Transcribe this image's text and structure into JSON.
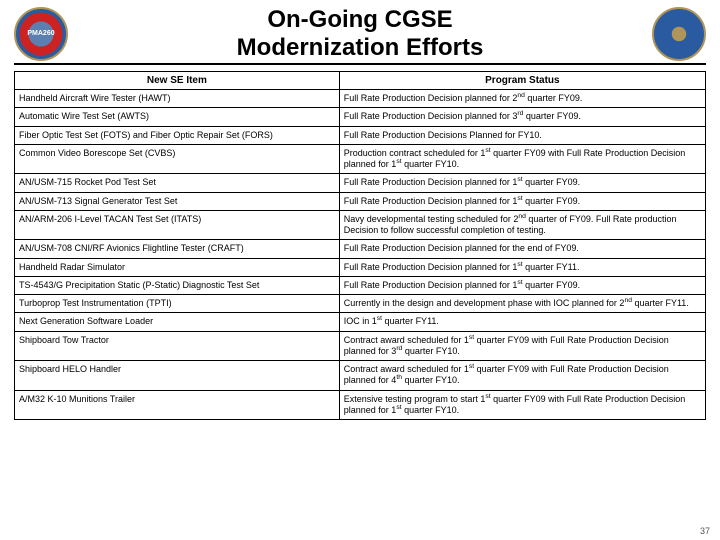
{
  "title_line1": "On-Going CGSE",
  "title_line2": "Modernization Efforts",
  "logo_left_label": "PMA260",
  "logo_right_label": "",
  "page_number": "37",
  "table": {
    "columns": [
      "New SE Item",
      "Program Status"
    ],
    "col_widths": [
      "47%",
      "53%"
    ],
    "header_fontsize": 10,
    "cell_fontsize": 9,
    "border_color": "#000000",
    "background_color": "#ffffff",
    "rows": [
      [
        "Handheld Aircraft Wire Tester (HAWT)",
        "Full Rate Production Decision planned for 2<sup>nd</sup> quarter FY09."
      ],
      [
        "Automatic Wire Test Set (AWTS)",
        "Full Rate Production Decision planned for 3<sup>rd</sup> quarter FY09."
      ],
      [
        "Fiber Optic Test Set (FOTS) and Fiber Optic Repair Set (FORS)",
        "Full Rate Production Decisions Planned for FY10."
      ],
      [
        "Common Video Borescope Set (CVBS)",
        "Production contract scheduled for 1<sup>st</sup> quarter FY09 with Full Rate Production Decision planned for 1<sup>st</sup> quarter FY10."
      ],
      [
        "AN/USM-715 Rocket Pod Test Set",
        "Full Rate Production Decision planned for 1<sup>st</sup> quarter FY09."
      ],
      [
        "AN/USM-713 Signal Generator Test Set",
        "Full Rate Production Decision planned for 1<sup>st</sup> quarter FY09."
      ],
      [
        "AN/ARM-206 I-Level TACAN Test Set  (ITATS)",
        "Navy developmental testing scheduled for 2<sup>nd</sup> quarter of FY09. Full Rate production Decision to follow successful completion of testing."
      ],
      [
        "AN/USM-708 CNI/RF Avionics Flightline Tester (CRAFT)",
        "Full Rate Production Decision planned for the end of FY09."
      ],
      [
        "Handheld Radar Simulator",
        "Full Rate Production Decision planned for 1<sup>st</sup> quarter FY11."
      ],
      [
        "TS-4543/G Precipitation Static (P-Static) Diagnostic Test Set",
        "Full Rate Production Decision planned for 1<sup>st</sup> quarter FY09."
      ],
      [
        "Turboprop Test Instrumentation (TPTI)",
        "Currently in the design and development phase with IOC planned for 2<sup>nd</sup> quarter FY11."
      ],
      [
        "Next Generation Software Loader",
        "IOC in 1<sup>st</sup> quarter FY11."
      ],
      [
        "Shipboard Tow Tractor",
        "Contract award scheduled for 1<sup>st</sup> quarter FY09 with Full Rate Production Decision planned for 3<sup>rd</sup> quarter FY10."
      ],
      [
        "Shipboard HELO Handler",
        "Contract award scheduled for 1<sup>st</sup> quarter FY09 with Full Rate Production Decision planned for 4<sup>th</sup> quarter FY10."
      ],
      [
        "A/M32 K-10 Munitions Trailer",
        "Extensive testing program to start 1<sup>st</sup> quarter FY09 with Full Rate Production Decision planned for 1<sup>st</sup> quarter FY10."
      ]
    ]
  }
}
